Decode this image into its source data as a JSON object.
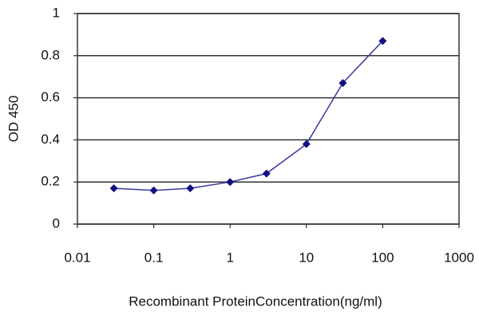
{
  "chart_data": {
    "type": "line",
    "x_label": "Recombinant ProteinConcentration(ng/ml)",
    "y_label": "OD 450",
    "x": [
      0.03,
      0.1,
      0.3,
      1,
      3,
      10,
      30,
      100
    ],
    "values": [
      0.17,
      0.16,
      0.17,
      0.2,
      0.24,
      0.38,
      0.67,
      0.87
    ],
    "color": "#101080",
    "line_color": "#3a3aa0",
    "xscale": "log",
    "xlim": [
      0.01,
      1000
    ],
    "xticks": [
      0.01,
      0.1,
      1,
      10,
      100,
      1000
    ],
    "ylim": [
      0,
      1
    ],
    "yticks": [
      0,
      0.2,
      0.4,
      0.6,
      0.8,
      1
    ],
    "grid": true
  }
}
